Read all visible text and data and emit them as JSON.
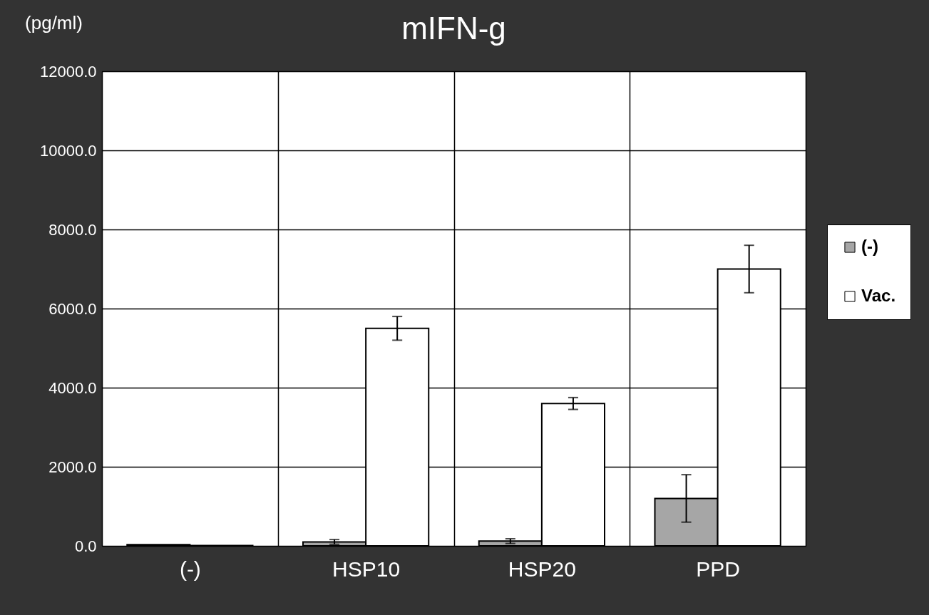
{
  "chart_data": {
    "type": "bar",
    "title": "mIFN-g",
    "ylabel": "(pg/ml)",
    "categories": [
      "(-)",
      "HSP10",
      "HSP20",
      "PPD"
    ],
    "series": [
      {
        "name": "(-)",
        "color": "#a6a6a6",
        "values": [
          30,
          100,
          120,
          1200
        ],
        "errors": [
          null,
          60,
          60,
          600
        ]
      },
      {
        "name": "Vac.",
        "color": "#ffffff",
        "values": [
          10,
          5500,
          3600,
          7000
        ],
        "errors": [
          null,
          300,
          150,
          600
        ]
      }
    ],
    "ylim": [
      0,
      12000
    ],
    "yticks": [
      {
        "value": 0,
        "label": "0.0"
      },
      {
        "value": 2000,
        "label": "2000.0"
      },
      {
        "value": 4000,
        "label": "4000.0"
      },
      {
        "value": 6000,
        "label": "6000.0"
      },
      {
        "value": 8000,
        "label": "8000.0"
      },
      {
        "value": 10000,
        "label": "10000.0"
      },
      {
        "value": 12000,
        "label": "12000.0"
      }
    ],
    "grid": true,
    "legend": "right"
  }
}
